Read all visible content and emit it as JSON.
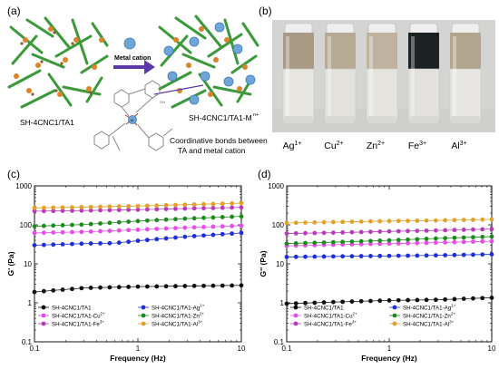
{
  "panel_a": {
    "label": "(a)",
    "arrow_label": "Metal cation",
    "left_caption": "SH-4CNC1/TA1",
    "right_caption": "SH-4CNC1/TA1-M",
    "right_caption_sup": "n+",
    "note_line1": "Coordinative bonds between",
    "note_line2": "TA and metal cation",
    "mol_label_oh": "OH",
    "mol_label_m": "M"
  },
  "panel_b": {
    "label": "(b)",
    "vials": [
      {
        "ion": "Ag",
        "charge": "1+",
        "top_color": "#a89a85",
        "bottom_color": "#e7e5e0"
      },
      {
        "ion": "Cu",
        "charge": "2+",
        "top_color": "#b8ab96",
        "bottom_color": "#e3e1dc"
      },
      {
        "ion": "Zn",
        "charge": "2+",
        "top_color": "#bfb3a0",
        "bottom_color": "#e6e4df"
      },
      {
        "ion": "Fe",
        "charge": "3+",
        "top_color": "#1c2124",
        "bottom_color": "#e2e1de"
      },
      {
        "ion": "Al",
        "charge": "3+",
        "top_color": "#b1a58e",
        "bottom_color": "#e7e6e2"
      }
    ]
  },
  "chart_data": [
    {
      "panel": "(c)",
      "type": "scatter",
      "xlabel": "Frequency (Hz)",
      "ylabel": "G' (Pa)",
      "xscale": "log",
      "yscale": "log",
      "xlim": [
        0.1,
        10
      ],
      "ylim": [
        0.1,
        1000
      ],
      "xticks": [
        "0.1",
        "1",
        "10"
      ],
      "yticks": [
        "0.1",
        "1",
        "10",
        "100",
        "1000"
      ],
      "legend_position": "bottom",
      "series": [
        {
          "name": "SH-4CNC1/TA1",
          "color": "#111111",
          "values": [
            [
              0.1,
              1.9
            ],
            [
              0.3,
              2.4
            ],
            [
              1,
              2.6
            ],
            [
              3,
              2.7
            ],
            [
              10,
              2.8
            ]
          ]
        },
        {
          "name": "SH-4CNC1/TA1-Ag",
          "sup": "1+",
          "color": "#1e2fd8",
          "values": [
            [
              0.1,
              30
            ],
            [
              0.3,
              33
            ],
            [
              0.6,
              34
            ],
            [
              1,
              39
            ],
            [
              3,
              50
            ],
            [
              10,
              62
            ]
          ]
        },
        {
          "name": "SH-4CNC1/TA1-Cu",
          "sup": "2+",
          "color": "#e84ce8",
          "values": [
            [
              0.1,
              62
            ],
            [
              0.3,
              66
            ],
            [
              1,
              75
            ],
            [
              3,
              85
            ],
            [
              10,
              95
            ]
          ]
        },
        {
          "name": "SH-4CNC1/TA1-Zn",
          "sup": "2+",
          "color": "#1b8c1b",
          "values": [
            [
              0.1,
              92
            ],
            [
              0.3,
              102
            ],
            [
              1,
              125
            ],
            [
              3,
              145
            ],
            [
              10,
              165
            ]
          ]
        },
        {
          "name": "SH-4CNC1/TA1-Fe",
          "sup": "3+",
          "color": "#b83ab8",
          "values": [
            [
              0.1,
              225
            ],
            [
              0.3,
              232
            ],
            [
              1,
              245
            ],
            [
              3,
              262
            ],
            [
              10,
              280
            ]
          ]
        },
        {
          "name": "SH-4CNC1/TA1-Al",
          "sup": "3+",
          "color": "#e2a12a",
          "values": [
            [
              0.1,
              272
            ],
            [
              0.3,
              285
            ],
            [
              1,
              305
            ],
            [
              3,
              330
            ],
            [
              10,
              360
            ]
          ]
        }
      ]
    },
    {
      "panel": "(d)",
      "type": "scatter",
      "xlabel": "Frequency (Hz)",
      "ylabel": "G'' (Pa)",
      "xscale": "log",
      "yscale": "log",
      "xlim": [
        0.1,
        10
      ],
      "ylim": [
        0.1,
        1000
      ],
      "xticks": [
        "0.1",
        "1",
        "10"
      ],
      "yticks": [
        "0.1",
        "1",
        "10",
        "100",
        "1000"
      ],
      "legend_position": "bottom",
      "series": [
        {
          "name": "SH-4CNC1/TA1",
          "color": "#111111",
          "values": [
            [
              0.1,
              0.95
            ],
            [
              0.3,
              1.05
            ],
            [
              1,
              1.15
            ],
            [
              3,
              1.2
            ],
            [
              10,
              1.35
            ]
          ]
        },
        {
          "name": "SH-4CNC1/TA1-Ag",
          "sup": "1+",
          "color": "#1e2fd8",
          "values": [
            [
              0.1,
              15
            ],
            [
              0.3,
              15.5
            ],
            [
              1,
              16
            ],
            [
              3,
              16.5
            ],
            [
              10,
              17.5
            ]
          ]
        },
        {
          "name": "SH-4CNC1/TA1-Cu",
          "sup": "2+",
          "color": "#e84ce8",
          "values": [
            [
              0.1,
              29
            ],
            [
              0.3,
              31
            ],
            [
              1,
              33
            ],
            [
              3,
              35
            ],
            [
              10,
              38
            ]
          ]
        },
        {
          "name": "SH-4CNC1/TA1-Zn",
          "sup": "2+",
          "color": "#1b8c1b",
          "values": [
            [
              0.1,
              33
            ],
            [
              0.3,
              36
            ],
            [
              1,
              40
            ],
            [
              3,
              45
            ],
            [
              10,
              50
            ]
          ]
        },
        {
          "name": "SH-4CNC1/TA1-Fe",
          "sup": "3+",
          "color": "#b83ab8",
          "values": [
            [
              0.1,
              60
            ],
            [
              0.3,
              63
            ],
            [
              1,
              68
            ],
            [
              3,
              72
            ],
            [
              10,
              78
            ]
          ]
        },
        {
          "name": "SH-4CNC1/TA1-Al",
          "sup": "3+",
          "color": "#e2a12a",
          "values": [
            [
              0.1,
              112
            ],
            [
              0.3,
              118
            ],
            [
              1,
              125
            ],
            [
              3,
              130
            ],
            [
              10,
              138
            ]
          ]
        }
      ]
    }
  ]
}
